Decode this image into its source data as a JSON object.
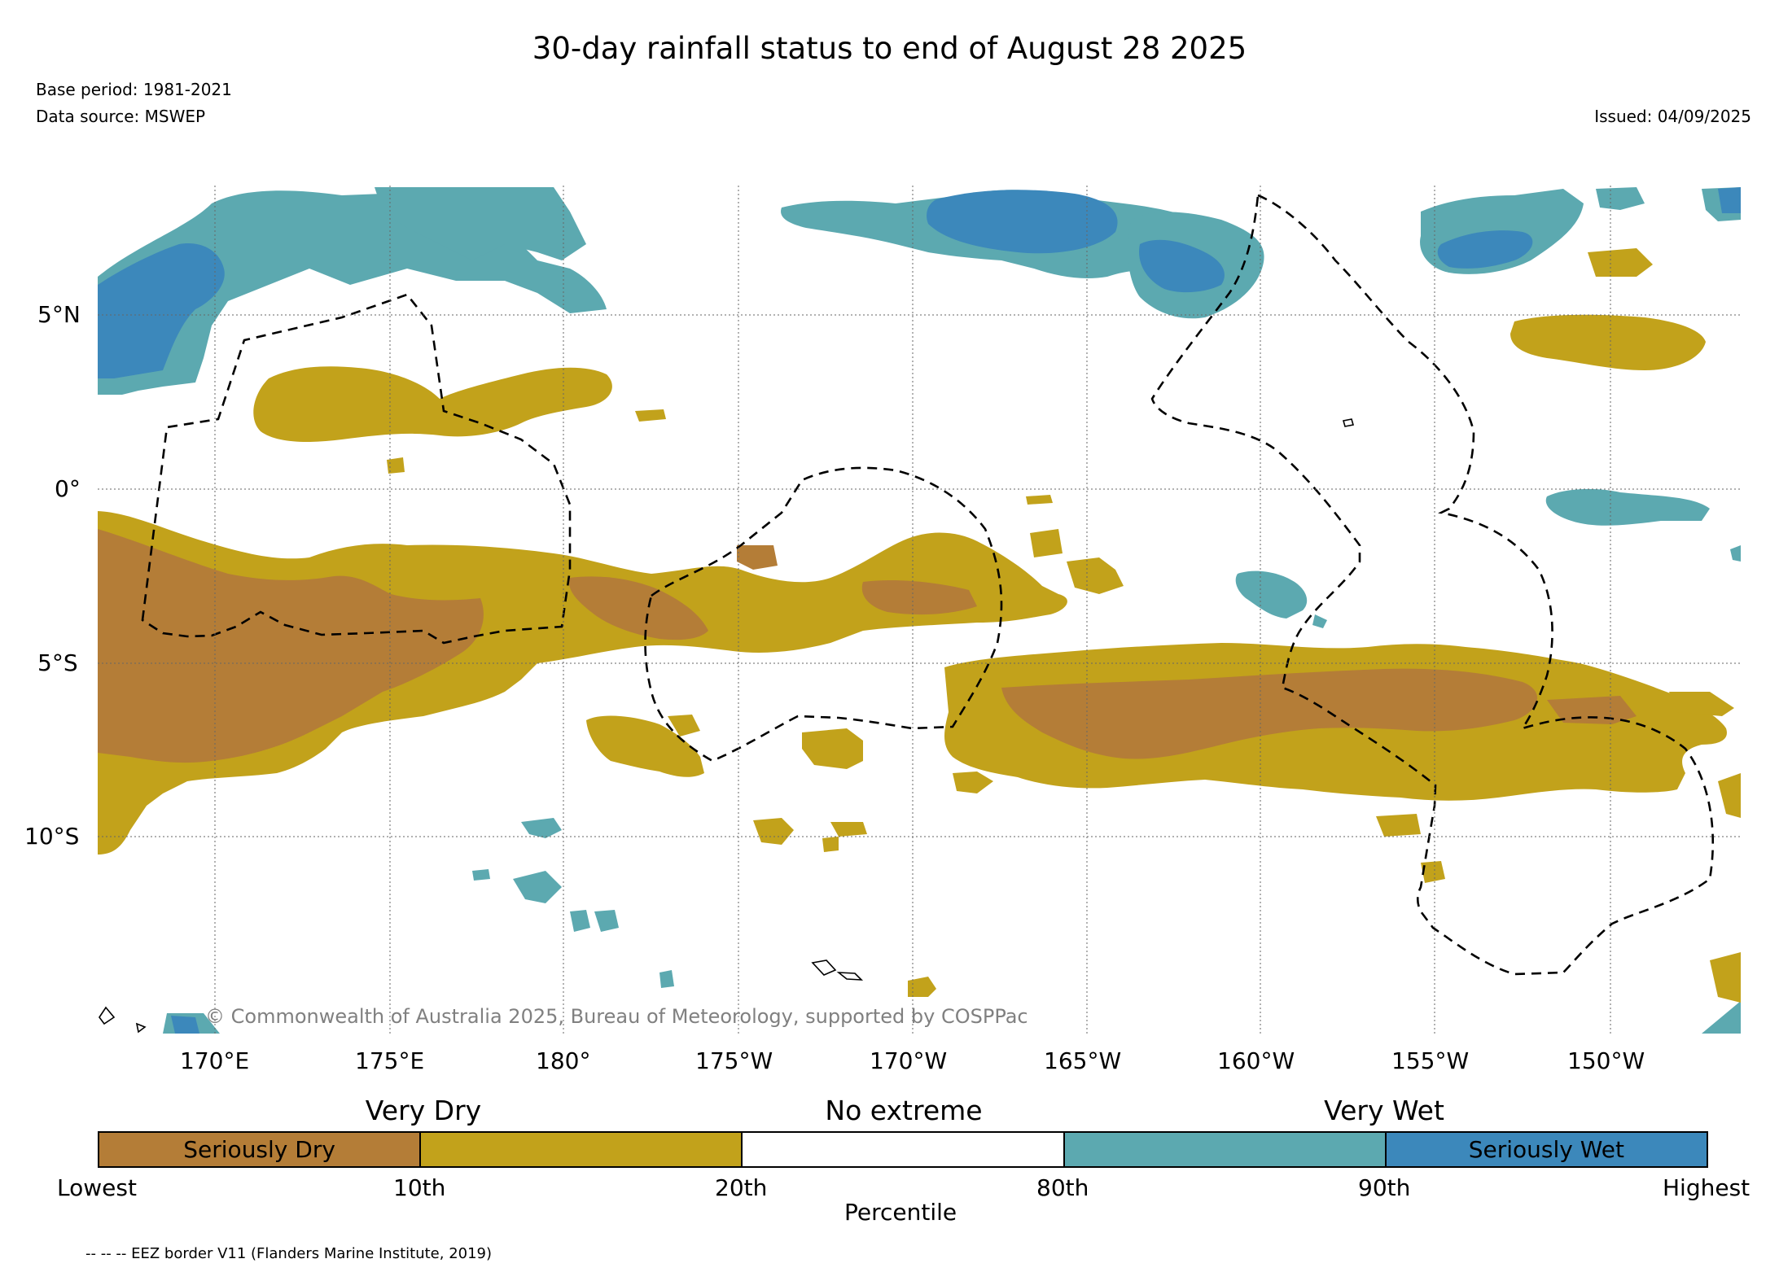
{
  "title": "30-day rainfall status to end of August 28 2025",
  "base_period": "Base period: 1981-2021",
  "data_source": "Data source: MSWEP",
  "issued": "Issued: 04/09/2025",
  "copyright": "© Commonwealth of Australia 2025, Bureau of Meteorology, supported by COSPPac",
  "lat_labels": [
    "5°N",
    "0°",
    "5°S",
    "10°S"
  ],
  "lon_labels": [
    "170°E",
    "175°E",
    "180°",
    "175°W",
    "170°W",
    "165°W",
    "160°W",
    "155°W",
    "150°W"
  ],
  "legend": {
    "categories": [
      "Very Dry",
      "No extreme",
      "Very Wet"
    ],
    "bins": [
      {
        "label": "Seriously Dry",
        "color": "#b47d37"
      },
      {
        "label": "",
        "color": "#c2a21b"
      },
      {
        "label": "",
        "color": "#ffffff"
      },
      {
        "label": "",
        "color": "#5ca9b0"
      },
      {
        "label": "Seriously Wet",
        "color": "#3c88bb"
      }
    ],
    "ticks": [
      "Lowest",
      "10th",
      "20th",
      "80th",
      "90th",
      "Highest"
    ],
    "axis_title": "Percentile"
  },
  "eez_note": "-- -- -- EEZ border V11 (Flanders Marine Institute, 2019)"
}
